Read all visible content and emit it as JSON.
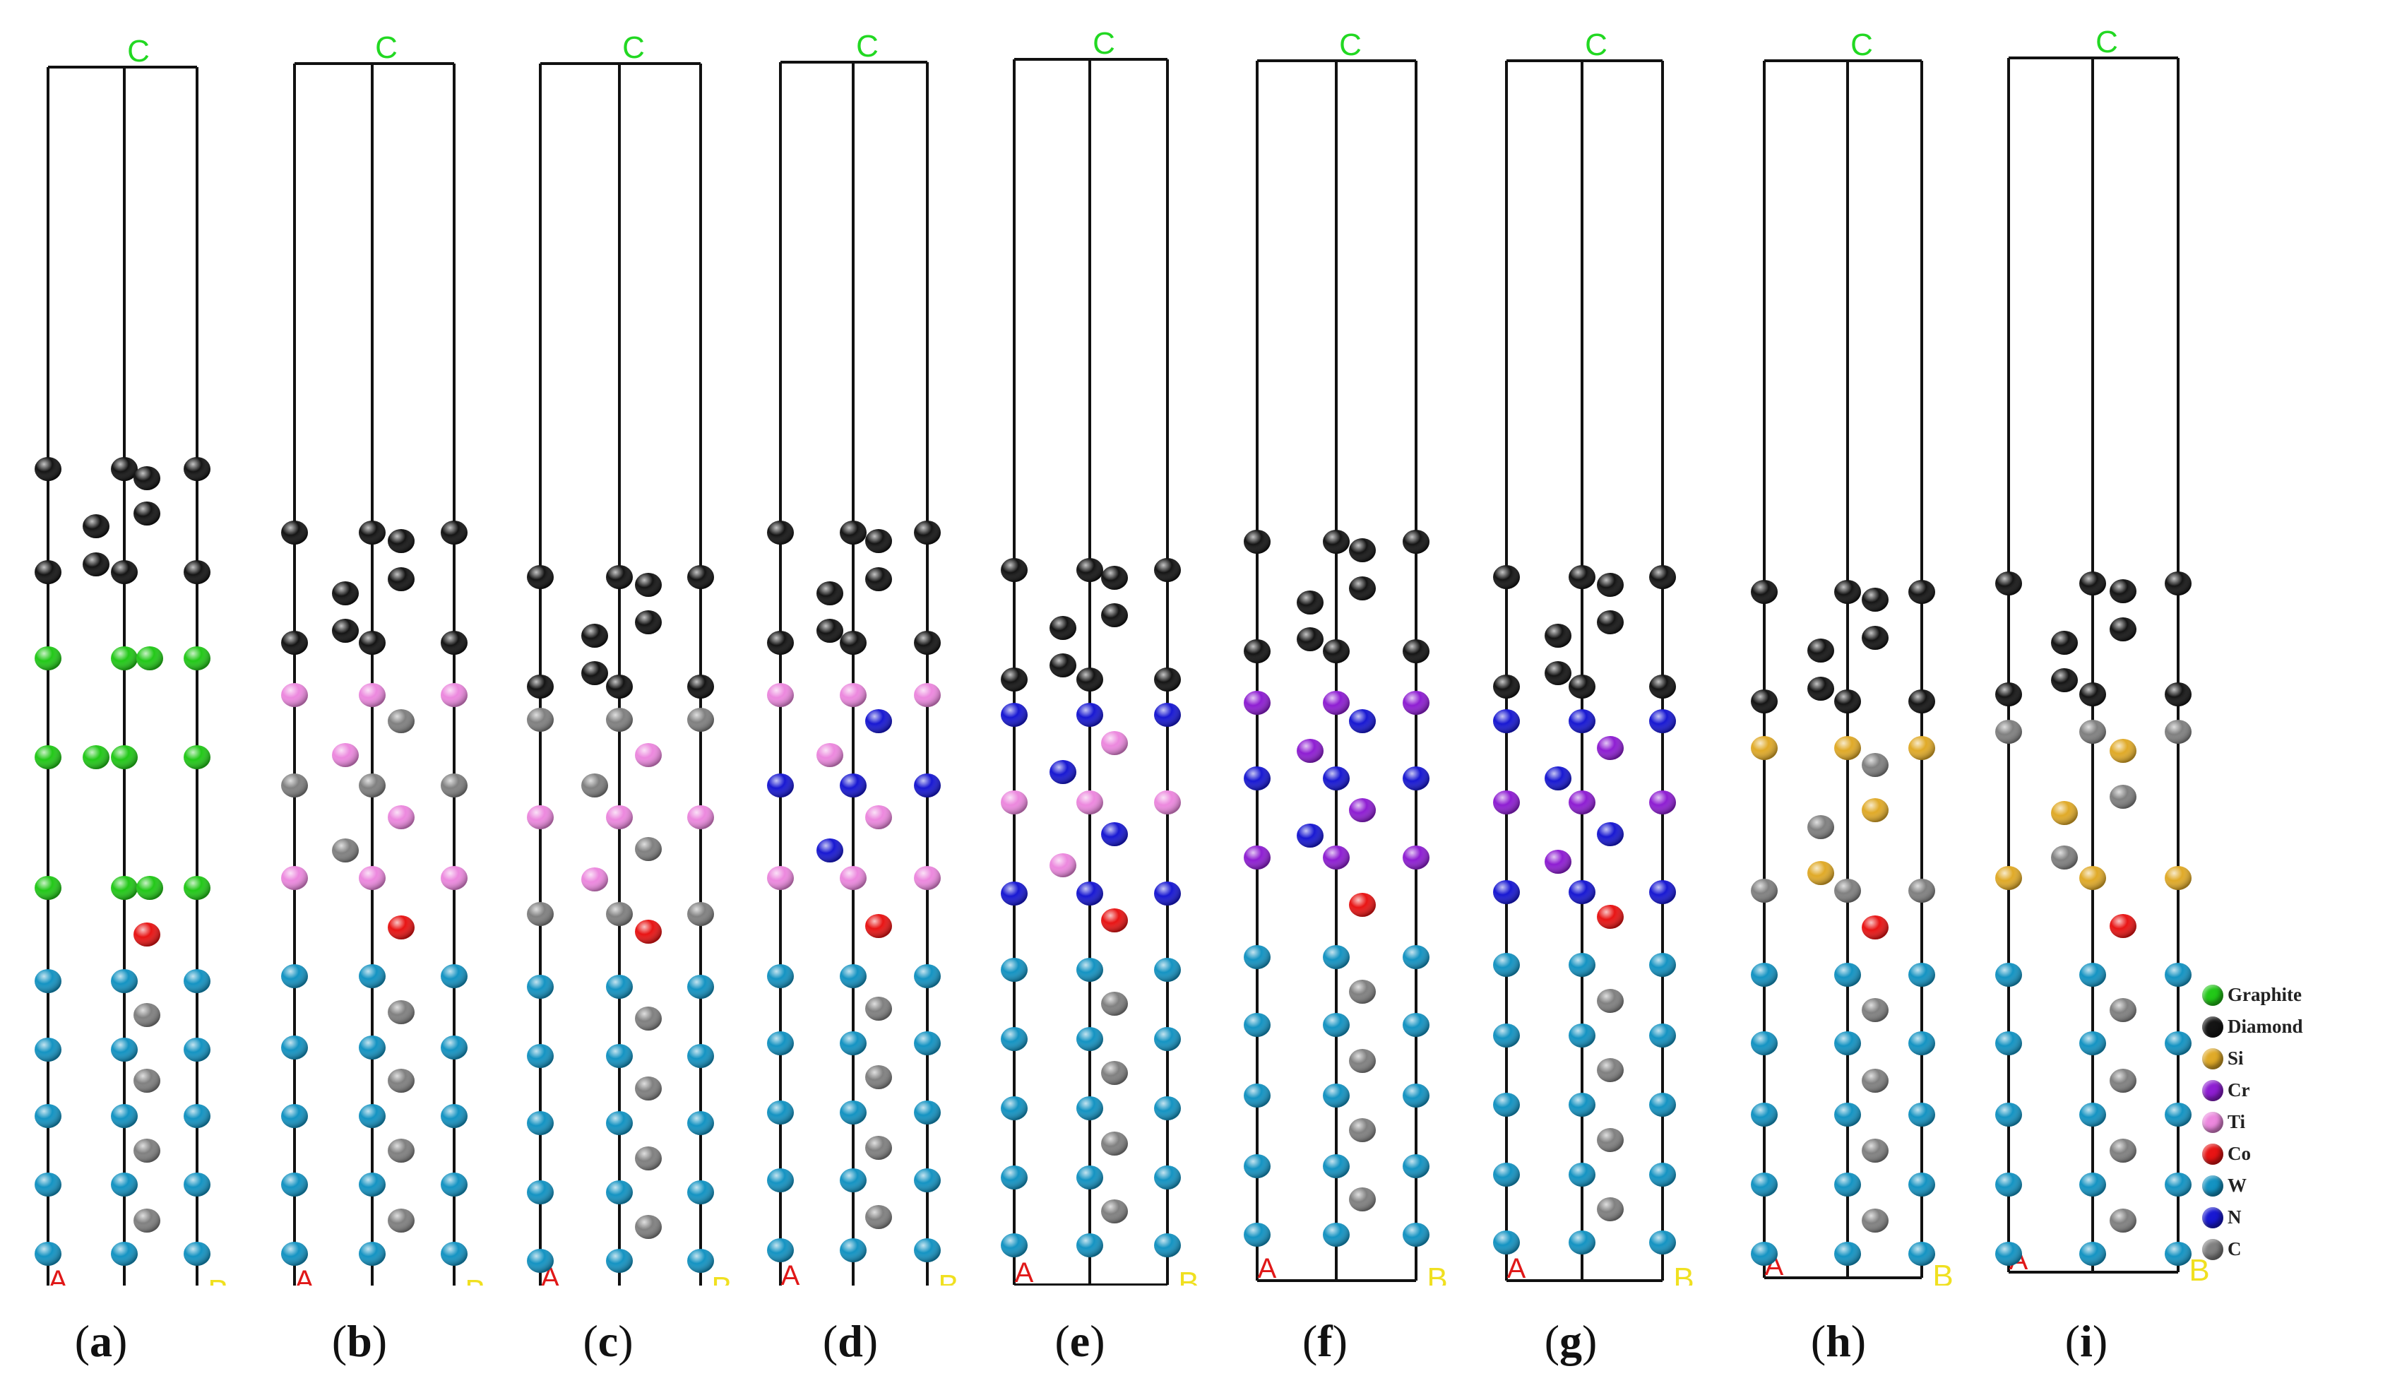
{
  "figure": {
    "axis_labels": {
      "a": "A",
      "b": "B",
      "c": "C"
    },
    "panels": [
      {
        "id": "a",
        "label_prefix": "(",
        "label_letter": "a",
        "label_suffix": ")"
      },
      {
        "id": "b",
        "label_prefix": "(",
        "label_letter": "b",
        "label_suffix": ")"
      },
      {
        "id": "c",
        "label_prefix": "(",
        "label_letter": "c",
        "label_suffix": ")"
      },
      {
        "id": "d",
        "label_prefix": "(",
        "label_letter": "d",
        "label_suffix": ")"
      },
      {
        "id": "e",
        "label_prefix": "(",
        "label_letter": "e",
        "label_suffix": ")"
      },
      {
        "id": "f",
        "label_prefix": "(",
        "label_letter": "f",
        "label_suffix": ")"
      },
      {
        "id": "g",
        "label_prefix": "(",
        "label_letter": "g",
        "label_suffix": ")"
      },
      {
        "id": "h",
        "label_prefix": "(",
        "label_letter": "h",
        "label_suffix": ")"
      },
      {
        "id": "i",
        "label_prefix": "(",
        "label_letter": "i",
        "label_suffix": ")"
      }
    ],
    "legend": [
      {
        "element": "Graphite",
        "color": "#22c818"
      },
      {
        "element": "Diamond",
        "color": "#141414"
      },
      {
        "element": "Si",
        "color": "#e0aa28"
      },
      {
        "element": "Cr",
        "color": "#8e1ed2"
      },
      {
        "element": "Ti",
        "color": "#ec88de"
      },
      {
        "element": "Co",
        "color": "#e81414"
      },
      {
        "element": "W",
        "color": "#1493c2"
      },
      {
        "element": "N",
        "color": "#1818d2"
      },
      {
        "element": "C",
        "color": "#808080"
      }
    ]
  }
}
